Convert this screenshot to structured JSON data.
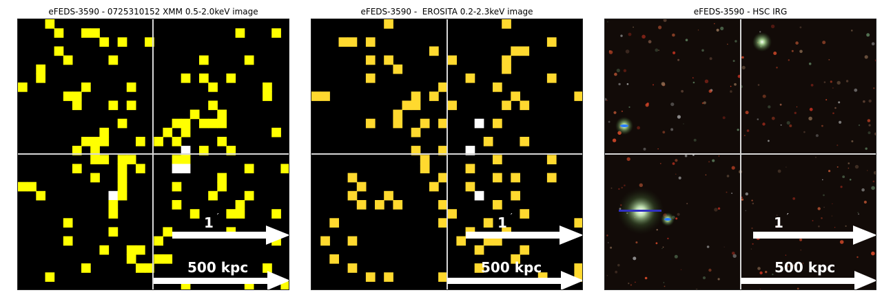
{
  "panels": [
    {
      "title": "eFEDS-3590 - 0725310152 XMM 0.5-2.0keV image",
      "kind": "xray",
      "colors": {
        "bg": "#000000",
        "pixel": "#ffff00",
        "bright": "#ffffff"
      },
      "scale_angle": "1",
      "scale_angle_unit": "′",
      "scale_distance": "500 kpc"
    },
    {
      "title": "eFEDS-3590 -  EROSITA 0.2-2.3keV image",
      "kind": "xray",
      "colors": {
        "bg": "#000000",
        "pixel": "#ffd92f",
        "bright": "#ffffff"
      },
      "scale_angle": "1",
      "scale_angle_unit": "′",
      "scale_distance": "500 kpc"
    },
    {
      "title": "eFEDS-3590 - HSC IRG",
      "kind": "optical",
      "colors": {
        "bg": "#120b08",
        "crosshair": "#d8d8d8"
      },
      "scale_angle": "1",
      "scale_angle_unit": "′",
      "scale_distance": "500 kpc"
    }
  ]
}
